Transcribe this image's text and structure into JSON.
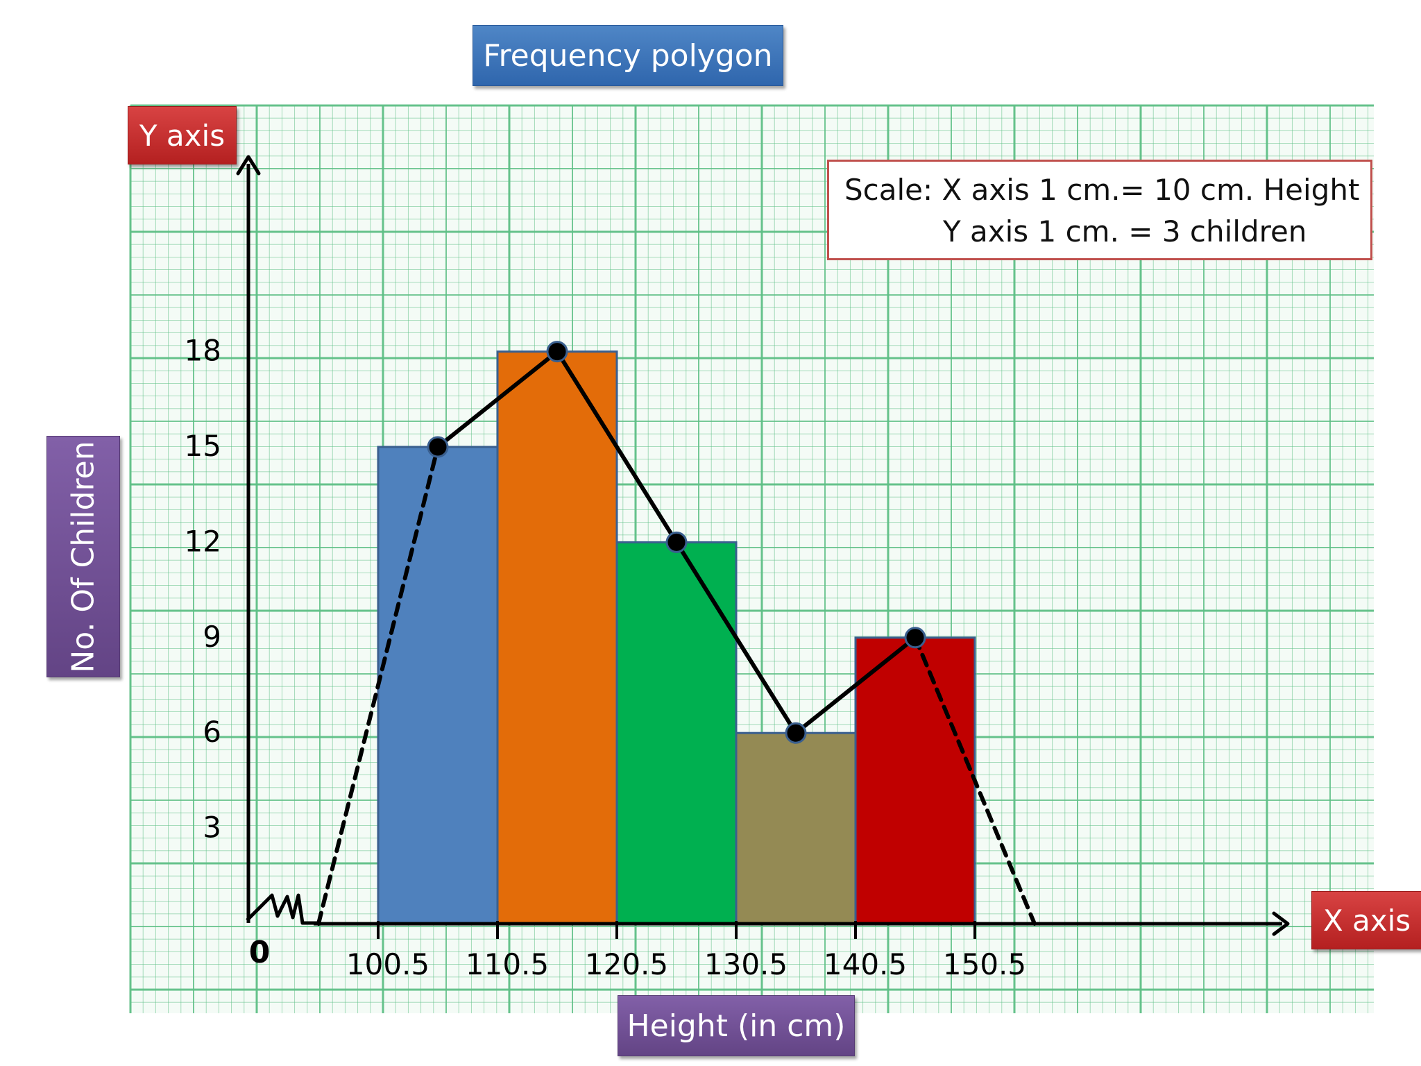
{
  "header": {
    "title": "Frequency polygon"
  },
  "axes_tags": {
    "y": "Y axis",
    "x": "X axis"
  },
  "scale_note": {
    "line1": "Scale: X axis 1 cm.= 10 cm. Height",
    "line2": "Y axis 1 cm. = 3 children"
  },
  "colors": {
    "grid": "#5dbf85",
    "polygon": "#000000",
    "bars": [
      "#4f81bd",
      "#e36c09",
      "#00b050",
      "#948a54",
      "#c00000"
    ]
  },
  "chart_data": {
    "type": "bar",
    "subtype": "histogram-with-frequency-polygon",
    "title": "Frequency polygon",
    "xlabel": "Height (in cm)",
    "ylabel": "No. Of Children",
    "origin_label": "0",
    "x_axis_break": true,
    "grid": true,
    "x_ticks": [
      "100.5",
      "110.5",
      "120.5",
      "130.5",
      "140.5",
      "150.5"
    ],
    "y_ticks": [
      "3",
      "6",
      "9",
      "12",
      "15",
      "18"
    ],
    "bins": [
      {
        "from": 100.5,
        "to": 110.5,
        "value": 15
      },
      {
        "from": 110.5,
        "to": 120.5,
        "value": 18
      },
      {
        "from": 120.5,
        "to": 130.5,
        "value": 12
      },
      {
        "from": 130.5,
        "to": 140.5,
        "value": 6
      },
      {
        "from": 140.5,
        "to": 150.5,
        "value": 9
      }
    ],
    "polygon": {
      "points": [
        {
          "x": 95.5,
          "y": 0,
          "style": "dashed"
        },
        {
          "x": 105.5,
          "y": 15
        },
        {
          "x": 115.5,
          "y": 18
        },
        {
          "x": 125.5,
          "y": 12
        },
        {
          "x": 135.5,
          "y": 6
        },
        {
          "x": 145.5,
          "y": 9
        },
        {
          "x": 155.5,
          "y": 0,
          "style": "dashed"
        }
      ]
    }
  }
}
